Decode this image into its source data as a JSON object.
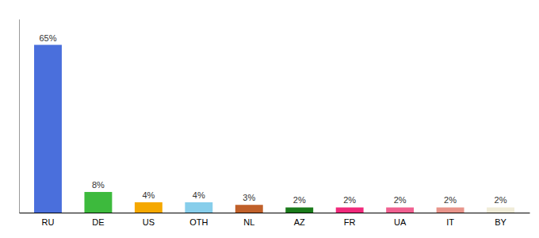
{
  "chart_data": {
    "type": "bar",
    "categories": [
      "RU",
      "DE",
      "US",
      "OTH",
      "NL",
      "AZ",
      "FR",
      "UA",
      "IT",
      "BY"
    ],
    "values": [
      65,
      8,
      4,
      4,
      3,
      2,
      2,
      2,
      2,
      2
    ],
    "value_labels": [
      "65%",
      "8%",
      "4%",
      "4%",
      "3%",
      "2%",
      "2%",
      "2%",
      "2%",
      "2%"
    ],
    "colors": [
      "#4a6fdc",
      "#3dba3d",
      "#f5a800",
      "#87ceeb",
      "#c0602a",
      "#1a7a1a",
      "#f0297a",
      "#f06090",
      "#e8948a",
      "#f0ecd8"
    ],
    "ylim": [
      0,
      75
    ],
    "data_labels": true,
    "tick_labels": "x",
    "grid": false
  }
}
